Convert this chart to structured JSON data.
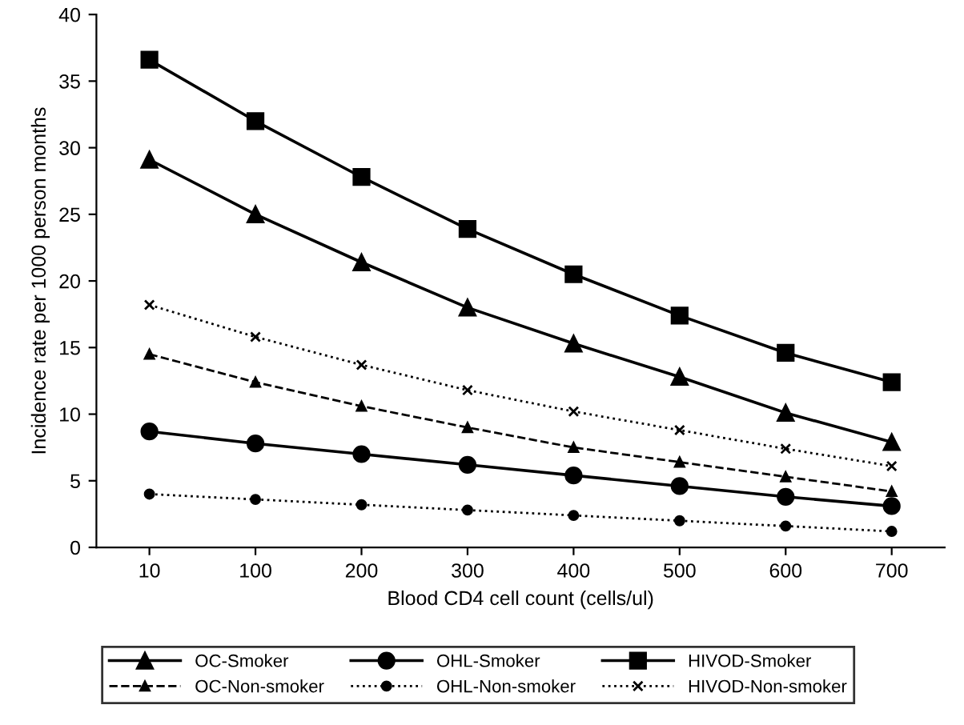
{
  "chart_data": {
    "type": "line",
    "xlabel": "Blood CD4 cell count (cells/ul)",
    "ylabel": "Incidence rate per 1000 person months",
    "categories": [
      "10",
      "100",
      "200",
      "300",
      "400",
      "500",
      "600",
      "700"
    ],
    "ylim": [
      0,
      40
    ],
    "yticks": [
      0,
      5,
      10,
      15,
      20,
      25,
      30,
      35,
      40
    ],
    "grid": false,
    "legend": "bottom",
    "series": [
      {
        "name": "OC-Smoker",
        "color": "#000000",
        "marker": "triangle",
        "line_style": "solid",
        "values": [
          29.1,
          25.0,
          21.4,
          18.0,
          15.3,
          12.8,
          10.1,
          7.9
        ]
      },
      {
        "name": "OC-Non-smoker",
        "color": "#000000",
        "marker": "triangle",
        "line_style": "dashed",
        "values": [
          14.5,
          12.4,
          10.6,
          9.0,
          7.5,
          6.4,
          5.3,
          4.2
        ]
      },
      {
        "name": "OHL-Smoker",
        "color": "#000000",
        "marker": "circle",
        "line_style": "solid",
        "values": [
          8.7,
          7.8,
          7.0,
          6.2,
          5.4,
          4.6,
          3.8,
          3.1
        ]
      },
      {
        "name": "OHL-Non-smoker",
        "color": "#000000",
        "marker": "circle",
        "line_style": "dotted",
        "values": [
          4.0,
          3.6,
          3.2,
          2.8,
          2.4,
          2.0,
          1.6,
          1.2
        ]
      },
      {
        "name": "HIVOD-Smoker",
        "color": "#000000",
        "marker": "square",
        "line_style": "solid",
        "values": [
          36.6,
          32.0,
          27.8,
          23.9,
          20.5,
          17.4,
          14.6,
          12.4
        ]
      },
      {
        "name": "HIVOD-Non-smoker",
        "color": "#000000",
        "marker": "cross",
        "line_style": "dotted",
        "values": [
          18.2,
          15.8,
          13.7,
          11.8,
          10.2,
          8.8,
          7.4,
          6.1
        ]
      }
    ]
  }
}
